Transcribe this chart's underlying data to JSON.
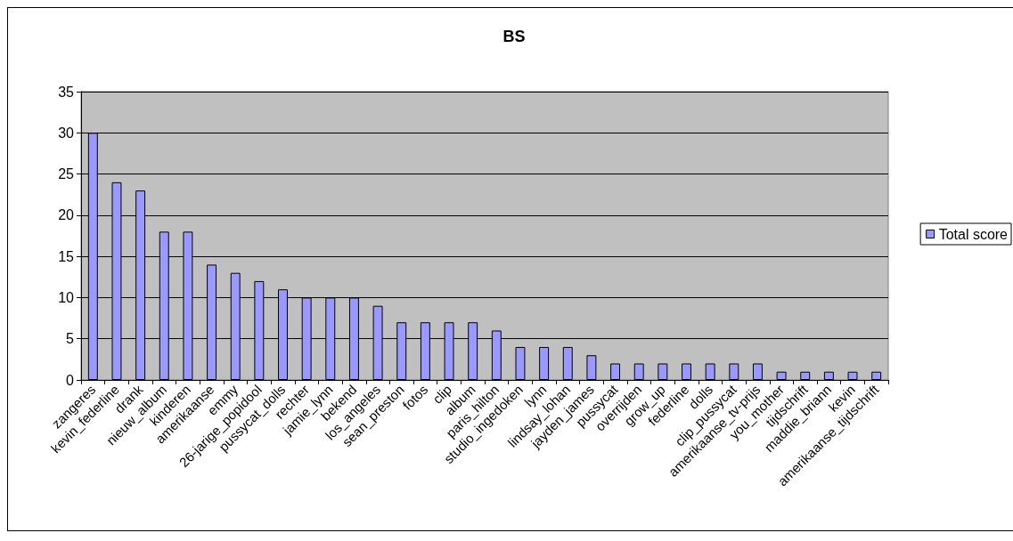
{
  "chart_data": {
    "type": "bar",
    "title": "BS",
    "categories": [
      "zangeres",
      "kevin_federline",
      "drank",
      "nieuw_album",
      "kinderen",
      "amerikaanse",
      "emmy",
      "26-jarige_popidool",
      "pussycat_dolls",
      "rechter",
      "jamie_lynn",
      "bekend",
      "los_angeles",
      "sean_preston",
      "fotos",
      "clip",
      "album",
      "paris_hilton",
      "studio_ingedoken",
      "lynn",
      "lindsay_lohan",
      "jayden_james",
      "pussycat",
      "overrijden",
      "grow_up",
      "federline",
      "dolls",
      "clip_pussycat",
      "amerikaanse_tv-prijs",
      "you_mother",
      "tijdschrift",
      "maddie_briann",
      "kevin",
      "amerikaanse_tijdschrift"
    ],
    "series": [
      {
        "name": "Total score",
        "color": "#9999ff",
        "values": [
          30,
          24,
          23,
          18,
          18,
          14,
          13,
          12,
          11,
          10,
          10,
          10,
          9,
          7,
          7,
          7,
          7,
          6,
          4,
          4,
          4,
          3,
          2,
          2,
          2,
          2,
          2,
          2,
          2,
          1,
          1,
          1,
          1,
          1
        ]
      }
    ],
    "ylim": [
      0,
      35
    ],
    "yticks": [
      0,
      5,
      10,
      15,
      20,
      25,
      30,
      35
    ],
    "grid": "y",
    "legend": "right"
  }
}
